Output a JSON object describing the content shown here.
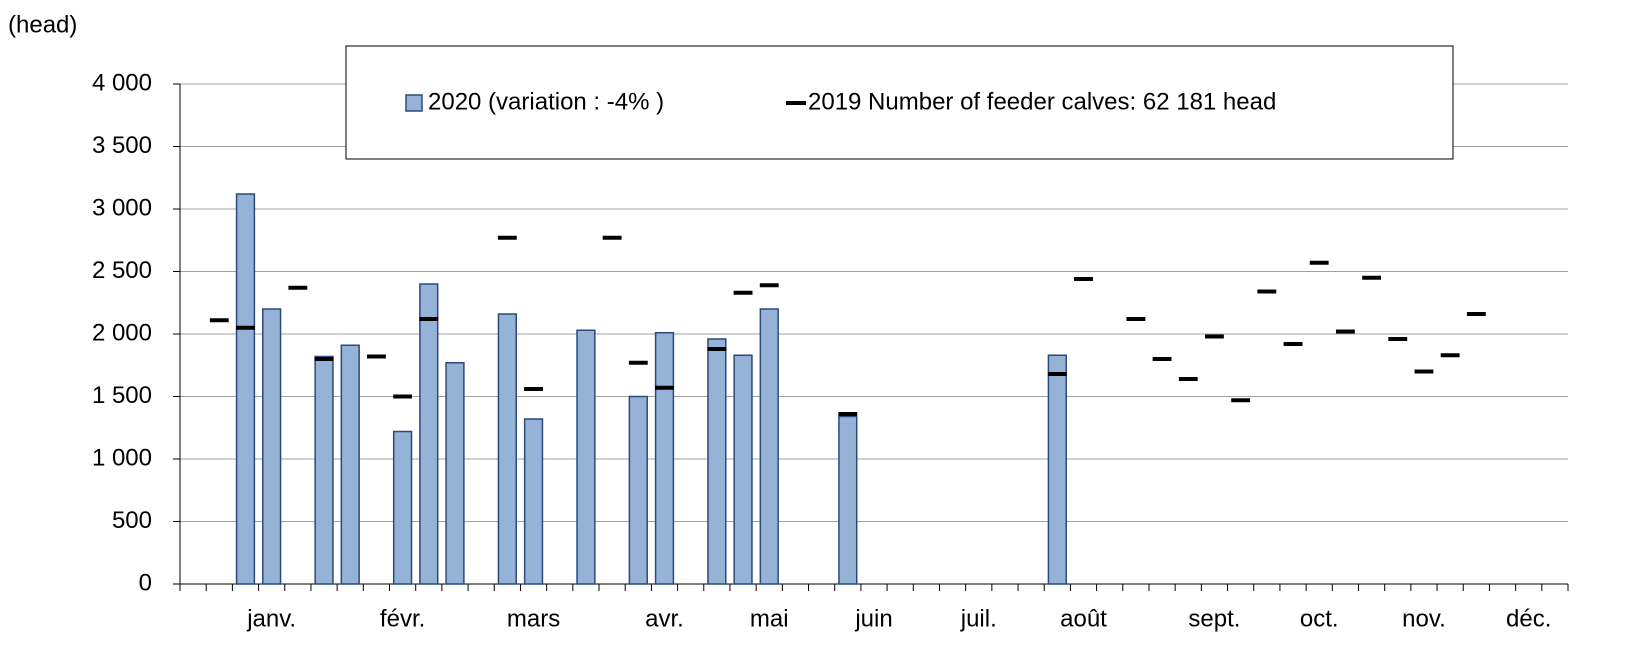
{
  "chart_data": {
    "type": "bar",
    "y_label": "(head)",
    "categories": [
      null,
      null,
      null,
      "janv.",
      null,
      null,
      null,
      null,
      "févr.",
      null,
      null,
      null,
      null,
      "mars",
      null,
      null,
      null,
      null,
      "avr.",
      null,
      null,
      null,
      "mai",
      null,
      null,
      null,
      "juin",
      null,
      null,
      null,
      "juil.",
      null,
      null,
      null,
      "août",
      null,
      null,
      null,
      null,
      "sept.",
      null,
      null,
      null,
      "oct.",
      null,
      null,
      null,
      "nov.",
      null,
      null,
      null,
      "déc.",
      null
    ],
    "series": [
      {
        "name": "2020 (variation : -4% )",
        "mark": "bar",
        "color": "#95b3d7",
        "values": [
          null,
          null,
          3120,
          2200,
          null,
          1820,
          1910,
          null,
          1220,
          2400,
          1770,
          null,
          2160,
          1320,
          null,
          2030,
          null,
          1500,
          2010,
          null,
          1960,
          1830,
          2200,
          null,
          null,
          1340,
          null,
          null,
          null,
          null,
          null,
          null,
          null,
          1830,
          null,
          null,
          null,
          null,
          null,
          null,
          null,
          null,
          null,
          null,
          null,
          null,
          null,
          null,
          null,
          null,
          null,
          null,
          null
        ]
      },
      {
        "name": "2019 Number of feeder calves: 62 181 head",
        "mark": "dash",
        "color": "#000000",
        "values": [
          null,
          2110,
          2050,
          null,
          2370,
          1800,
          null,
          1820,
          1500,
          2120,
          null,
          null,
          2770,
          1560,
          null,
          null,
          2770,
          1770,
          1570,
          null,
          1880,
          2330,
          2390,
          null,
          null,
          1360,
          null,
          null,
          null,
          null,
          null,
          null,
          null,
          1680,
          2440,
          null,
          2120,
          1800,
          1640,
          1980,
          1470,
          2340,
          1920,
          2570,
          2020,
          2450,
          1960,
          1700,
          1830,
          2160,
          null,
          null,
          null
        ]
      }
    ],
    "ylim": [
      0,
      4000
    ],
    "yticks": [
      0,
      500,
      {
        "value": 1000,
        "label": "1 000"
      },
      {
        "value": 1500,
        "label": "1 500"
      },
      {
        "value": 2000,
        "label": "2 000"
      },
      {
        "value": 2500,
        "label": "2 500"
      },
      {
        "value": 3000,
        "label": "3 000"
      },
      {
        "value": 3500,
        "label": "3 500"
      },
      {
        "value": 4000,
        "label": "4 000"
      }
    ],
    "grid": true,
    "legend": "top"
  }
}
